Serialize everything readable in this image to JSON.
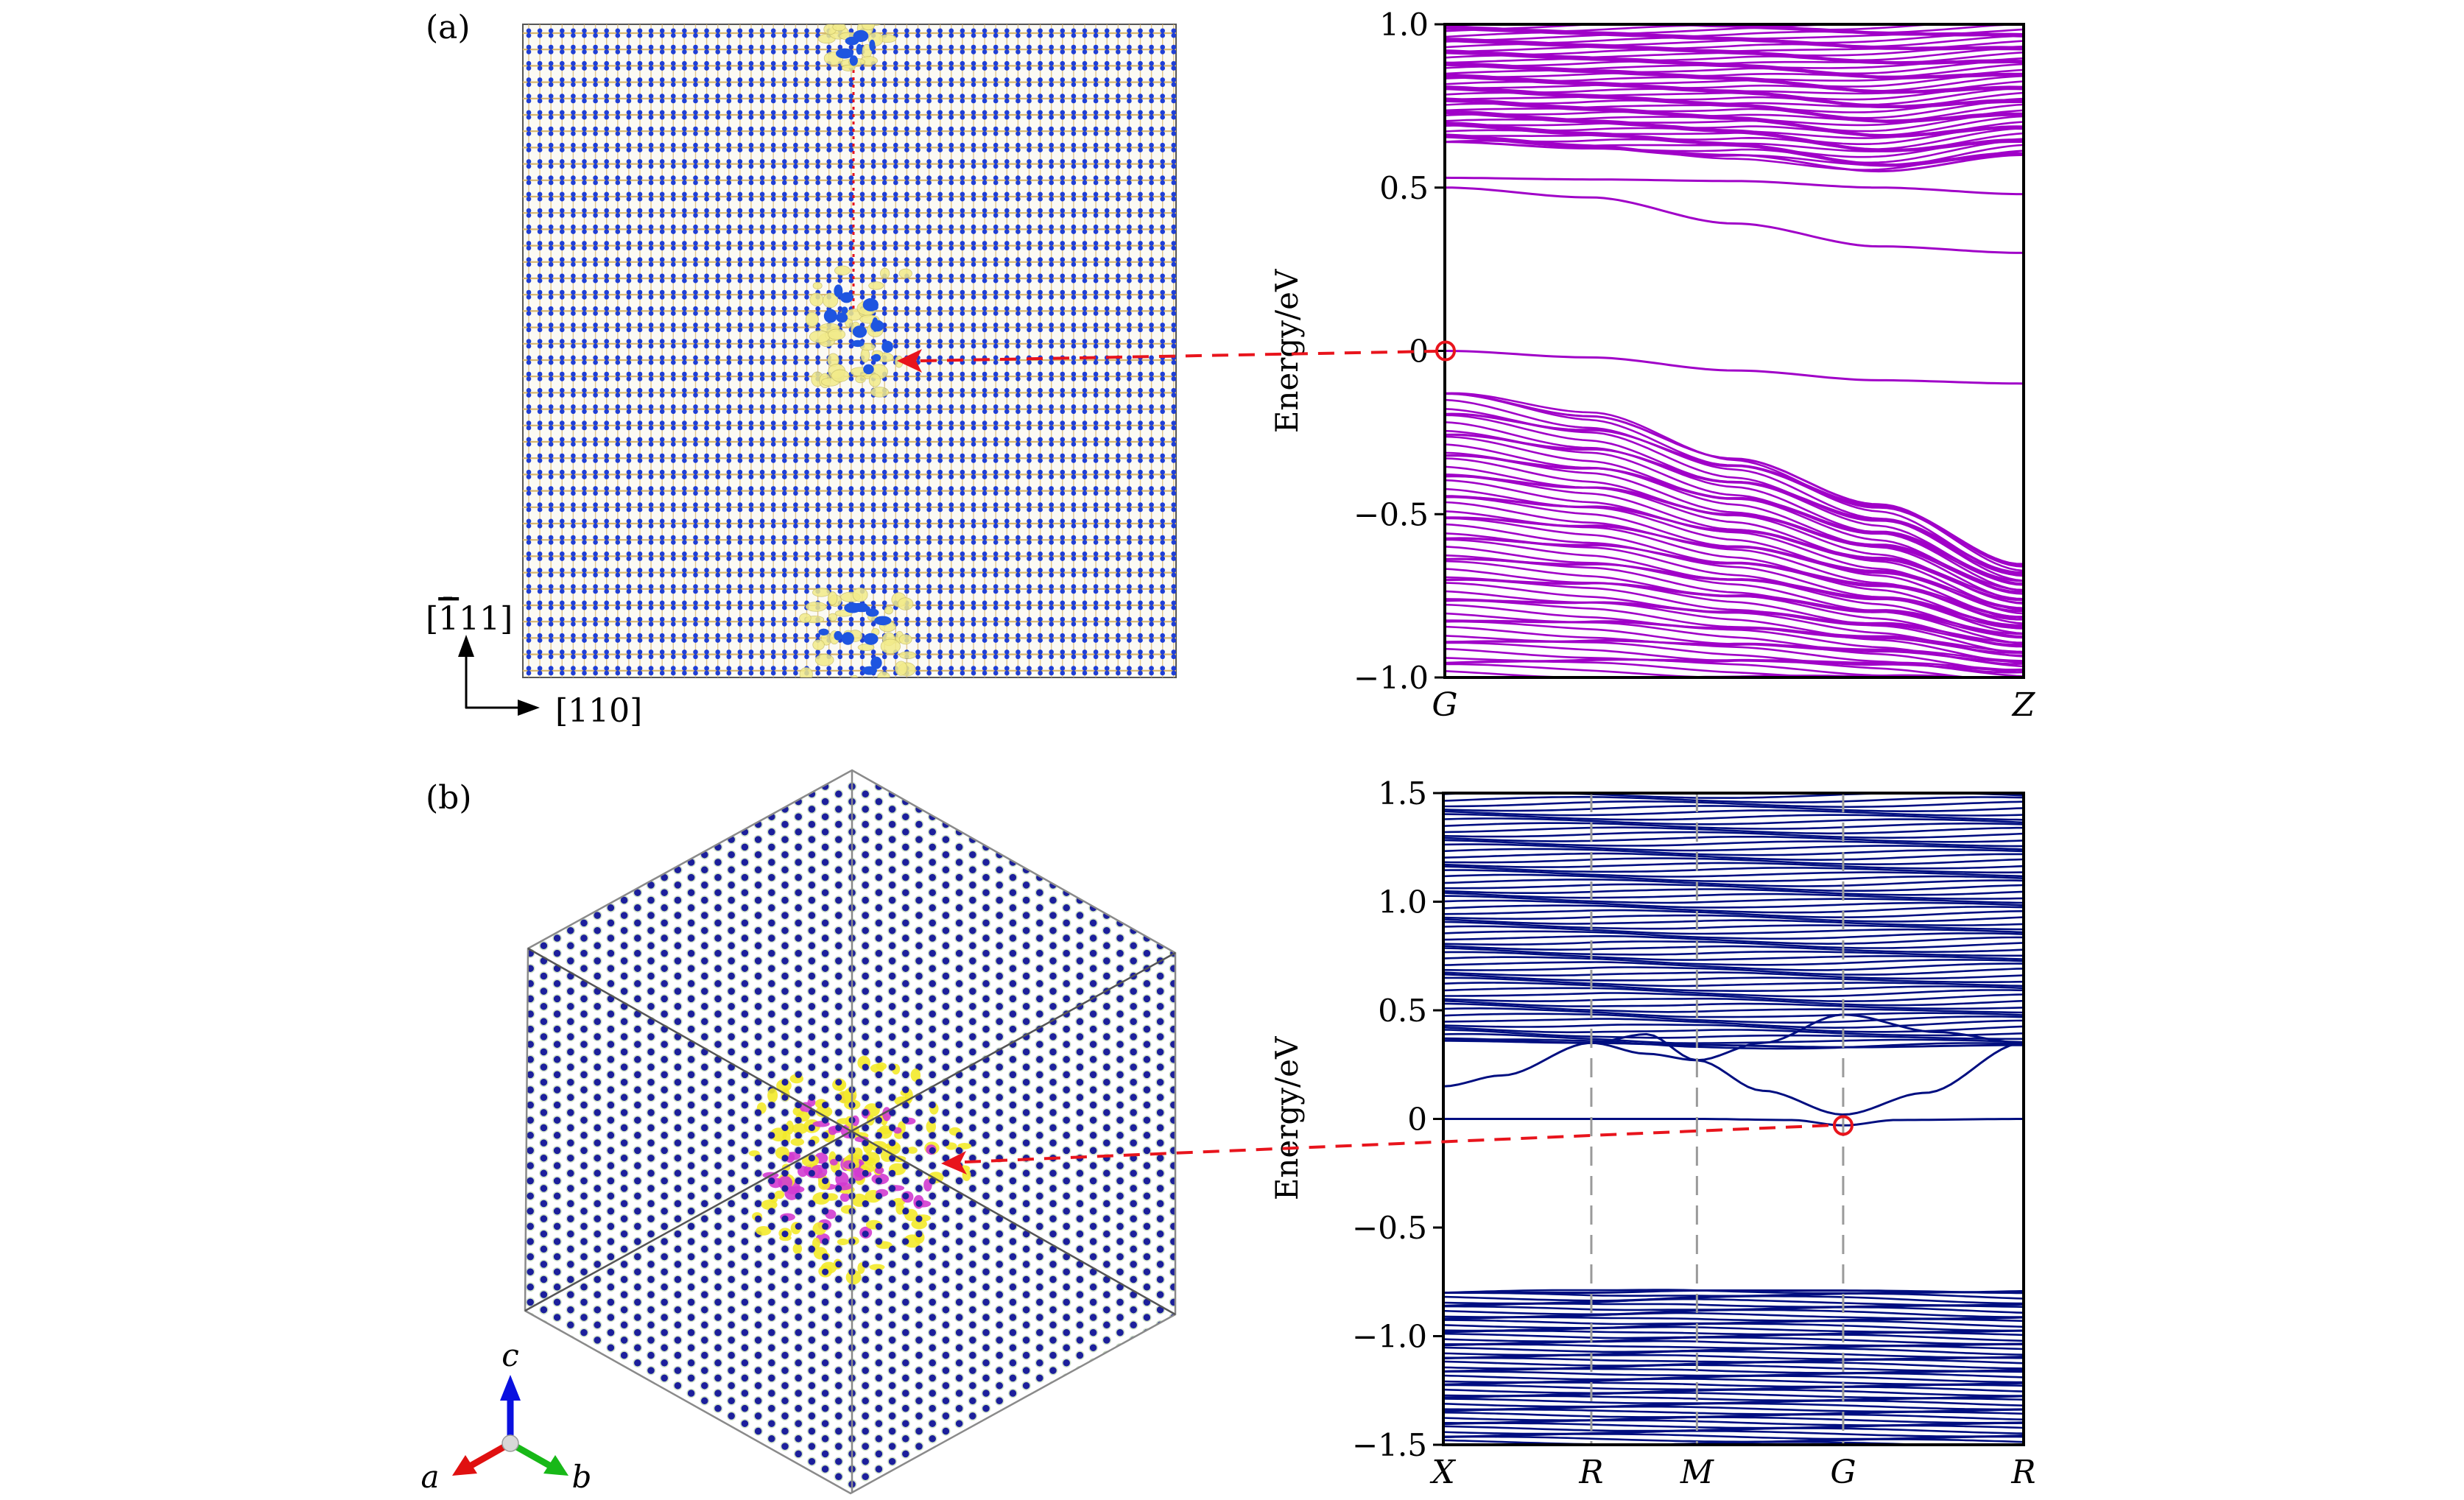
{
  "panel_a": {
    "label": "(a)",
    "structure": {
      "direction_up": "[ī11]",
      "direction_up_parts": [
        "[",
        "1",
        "11]"
      ],
      "direction_right": "[110]",
      "atom_color": "#1f3fd6",
      "bond_color": "#d8b56a",
      "isosurface_color": "#f2eb8a"
    }
  },
  "panel_b": {
    "label": "(b)",
    "structure": {
      "axis_c": "c",
      "axis_a": "a",
      "axis_b": "b",
      "atom_color": "#1c1f9c",
      "isosurface_yellow": "#f3ea2a",
      "isosurface_magenta": "#d23bd0",
      "axis_colors": {
        "a": "#e01010",
        "b": "#18b818",
        "c": "#0a10e0"
      }
    }
  },
  "annotation_color": "#e8141c",
  "chart_data": [
    {
      "id": "band-a",
      "type": "line",
      "title": "",
      "xlabel": "",
      "ylabel": "Energy/eV",
      "ylim": [
        -1.0,
        1.0
      ],
      "yticks": [
        1.0,
        0.5,
        0,
        -0.5,
        -1.0
      ],
      "ytick_labels": [
        "1.0",
        "0.5",
        "0",
        "−0.5",
        "−1.0"
      ],
      "xticks": [
        0,
        1
      ],
      "xtick_labels": [
        "G",
        "Z"
      ],
      "color": "#a000c8",
      "grid": false,
      "highlight_point": {
        "x": 0,
        "y": 0
      },
      "series": [
        {
          "name": "defect-band-1",
          "x": [
            0,
            0.25,
            0.5,
            0.75,
            1
          ],
          "values": [
            0.0,
            -0.02,
            -0.06,
            -0.09,
            -0.1
          ]
        },
        {
          "name": "defect-band-2",
          "x": [
            0,
            0.25,
            0.5,
            0.75,
            1
          ],
          "values": [
            0.5,
            0.47,
            0.39,
            0.32,
            0.3
          ]
        },
        {
          "name": "defect-band-3",
          "x": [
            0,
            0.25,
            0.5,
            0.75,
            1
          ],
          "values": [
            0.53,
            0.525,
            0.52,
            0.5,
            0.48
          ]
        },
        {
          "name": "conduction-band-edge",
          "x": [
            0,
            0.25,
            0.5,
            0.75,
            1
          ],
          "values": [
            0.64,
            0.62,
            0.6,
            0.55,
            0.6
          ]
        },
        {
          "name": "valence-band-edge",
          "x": [
            0,
            0.25,
            0.5,
            0.75,
            1
          ],
          "values": [
            -0.13,
            -0.2,
            -0.33,
            -0.47,
            -0.66
          ]
        }
      ],
      "conduction_band_range": [
        0.64,
        1.0
      ],
      "valence_band_range": [
        -1.0,
        -0.13
      ]
    },
    {
      "id": "band-b",
      "type": "line",
      "title": "",
      "xlabel": "",
      "ylabel": "Energy/eV",
      "ylim": [
        -1.5,
        1.5
      ],
      "yticks": [
        1.5,
        1.0,
        0.5,
        0,
        -0.5,
        -1.0,
        -1.5
      ],
      "ytick_labels": [
        "1.5",
        "1.0",
        "0.5",
        "0",
        "−0.5",
        "−1.0",
        "−1.5"
      ],
      "xticks": [
        0,
        0.255,
        0.437,
        0.689,
        1
      ],
      "xtick_labels": [
        "X",
        "R",
        "M",
        "G",
        "R"
      ],
      "color": "#000e80",
      "grid": false,
      "highlight_point": {
        "x": 0.689,
        "y": -0.03
      },
      "series": [
        {
          "name": "flat-defect-band",
          "x": [
            0,
            0.255,
            0.437,
            0.6,
            0.689,
            0.78,
            1
          ],
          "values": [
            0.0,
            0.0,
            0.0,
            -0.005,
            -0.03,
            -0.005,
            0.0
          ]
        },
        {
          "name": "dispersive-band-1",
          "x": [
            0,
            0.1,
            0.255,
            0.35,
            0.437,
            0.55,
            0.689,
            0.83,
            1
          ],
          "values": [
            0.15,
            0.2,
            0.35,
            0.3,
            0.27,
            0.13,
            0.02,
            0.12,
            0.35
          ]
        },
        {
          "name": "dispersive-band-2",
          "x": [
            0,
            0.255,
            0.35,
            0.437,
            0.55,
            0.689,
            0.85,
            1
          ],
          "values": [
            0.37,
            0.35,
            0.39,
            0.27,
            0.35,
            0.48,
            0.4,
            0.35
          ]
        },
        {
          "name": "conduction-band-edge",
          "x": [
            0,
            0.255,
            0.437,
            0.689,
            1
          ],
          "values": [
            0.36,
            0.35,
            0.34,
            0.33,
            0.34
          ]
        },
        {
          "name": "valence-band-edge",
          "x": [
            0,
            0.255,
            0.437,
            0.689,
            1
          ],
          "values": [
            -0.8,
            -0.8,
            -0.79,
            -0.79,
            -0.8
          ]
        }
      ],
      "conduction_band_range": [
        0.34,
        1.5
      ],
      "valence_band_range": [
        -1.5,
        -0.79
      ]
    }
  ]
}
